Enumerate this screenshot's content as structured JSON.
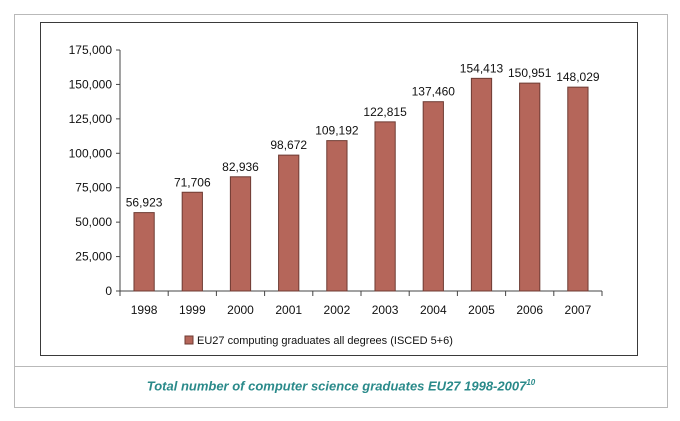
{
  "colors": {
    "bar_fill": "#b5665a",
    "bar_stroke": "#6e3b33",
    "caption": "#2a8a8a"
  },
  "chart_data": {
    "type": "bar",
    "title": "",
    "xlabel": "",
    "ylabel": "",
    "categories": [
      "1998",
      "1999",
      "2000",
      "2001",
      "2002",
      "2003",
      "2004",
      "2005",
      "2006",
      "2007"
    ],
    "values": [
      56923,
      71706,
      82936,
      98672,
      109192,
      122815,
      137460,
      154413,
      150951,
      148029
    ],
    "value_labels": [
      "56,923",
      "71,706",
      "82,936",
      "98,672",
      "109,192",
      "122,815",
      "137,460",
      "154,413",
      "150,951",
      "148,029"
    ],
    "ylim": [
      0,
      175000
    ],
    "yticks": [
      0,
      25000,
      50000,
      75000,
      100000,
      125000,
      150000,
      175000
    ],
    "ytick_labels": [
      "0",
      "25,000",
      "50,000",
      "75,000",
      "100,000",
      "125,000",
      "150,000",
      "175,000"
    ],
    "legend": {
      "position": "bottom-center",
      "entries": [
        "EU27 computing graduates all  degrees (ISCED 5+6)"
      ]
    },
    "grid": false
  },
  "caption": {
    "text": "Total number of computer science graduates EU27 1998-2007",
    "footnote": "10"
  }
}
